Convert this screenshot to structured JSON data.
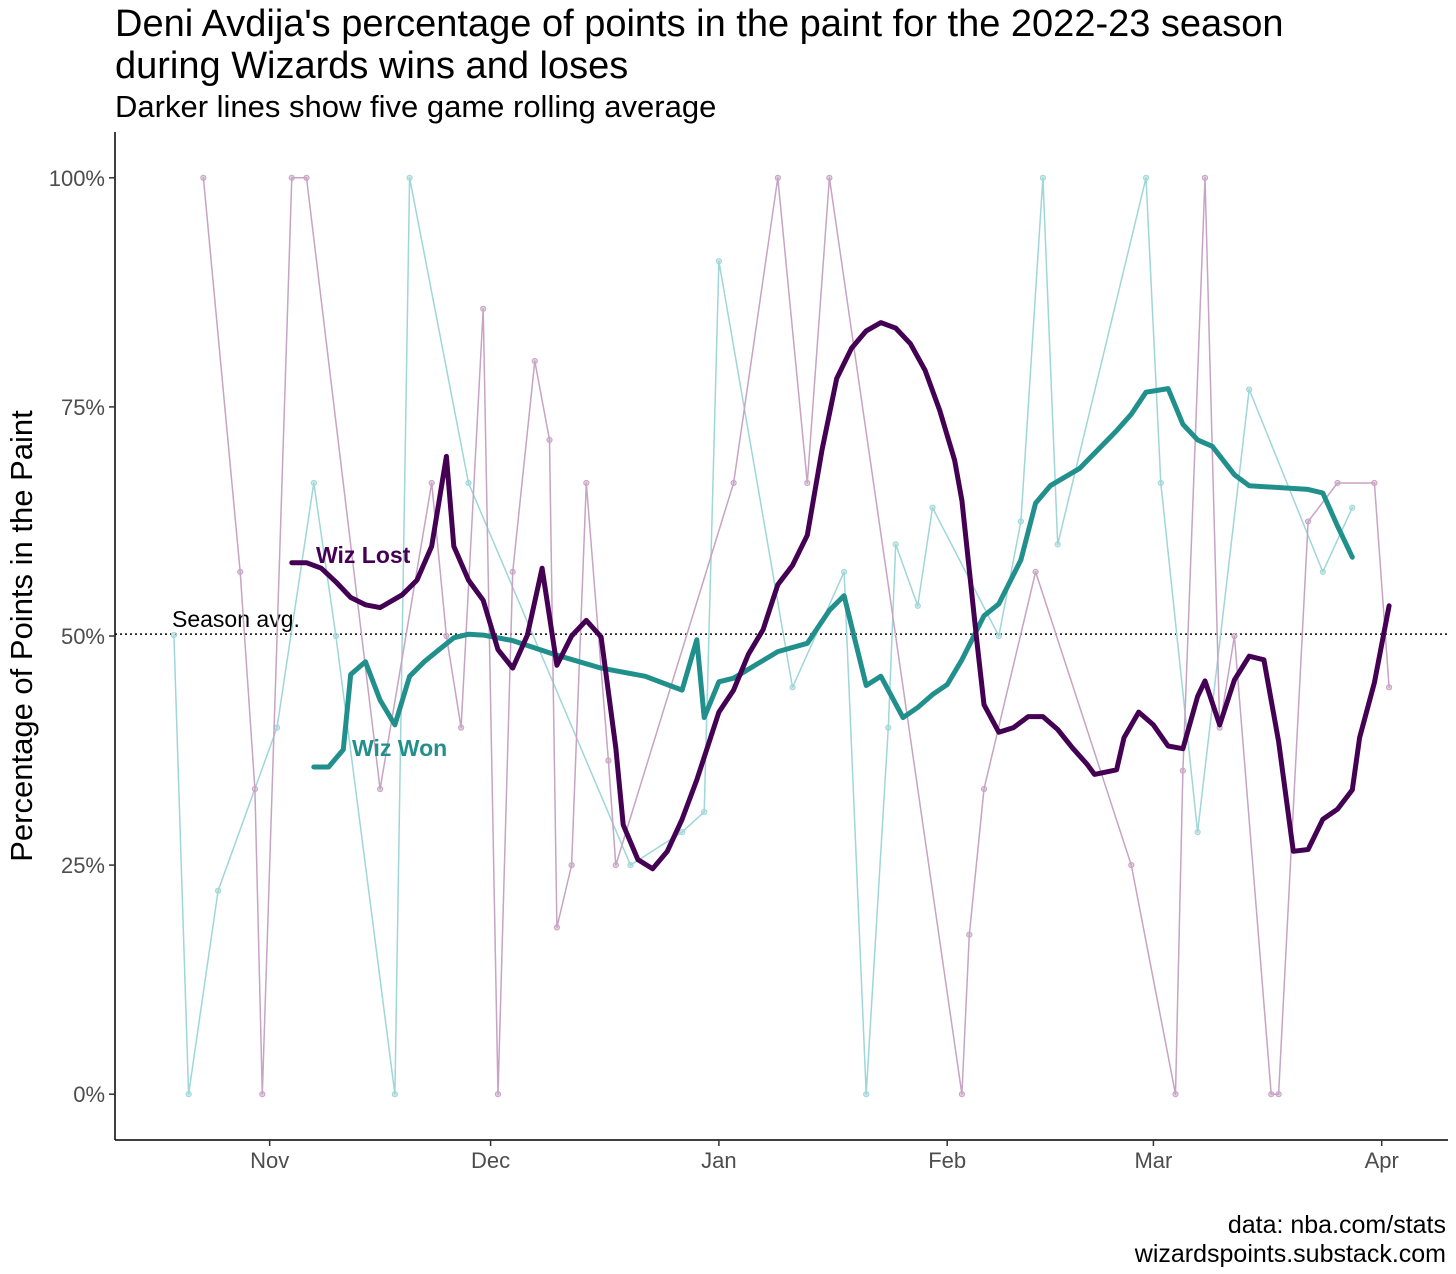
{
  "chart_data": {
    "type": "line",
    "title": [
      "Deni Avdija's percentage of points in the paint for the 2022-23 season",
      "during Wizards wins and loses"
    ],
    "subtitle": "Darker lines show five game rolling average",
    "y_label": "Percentage of Points in the Paint",
    "caption": [
      "data: nba.com/stats",
      "wizardspoints.substack.com"
    ],
    "xlim": [
      -21,
      160
    ],
    "xticks": [
      {
        "value": 0,
        "label": "Nov"
      },
      {
        "value": 30,
        "label": "Dec"
      },
      {
        "value": 61,
        "label": "Jan"
      },
      {
        "value": 92,
        "label": "Feb"
      },
      {
        "value": 120,
        "label": "Mar"
      },
      {
        "value": 151,
        "label": "Apr"
      }
    ],
    "ylim": [
      -5,
      105
    ],
    "yticks": [
      {
        "value": 0,
        "label": "0%"
      },
      {
        "value": 25,
        "label": "25%"
      },
      {
        "value": 50,
        "label": "50%"
      },
      {
        "value": 75,
        "label": "75%"
      },
      {
        "value": 100,
        "label": "100%"
      }
    ],
    "grid": false,
    "reference_line": {
      "label": "Season avg.",
      "value": 50.2
    },
    "series": [
      {
        "color": "#9fd6d8",
        "line_width": 1.5,
        "markers": true,
        "x": [
          -13,
          -11,
          -7,
          1,
          6,
          9,
          17,
          19,
          27,
          49,
          56,
          59,
          61,
          71,
          78,
          81,
          84,
          85,
          88,
          90,
          99,
          102,
          105,
          107,
          119,
          121,
          126,
          133,
          143,
          147
        ],
        "values": [
          50.1,
          0,
          22.2,
          40,
          66.7,
          50,
          0,
          100,
          66.7,
          25,
          28.6,
          30.8,
          90.9,
          44.4,
          57,
          0,
          40,
          60,
          53.3,
          64,
          50,
          62.5,
          100,
          60,
          100,
          66.7,
          28.6,
          76.9,
          57,
          64
        ]
      },
      {
        "color": "#c7a3c4",
        "line_width": 1.5,
        "markers": true,
        "x": [
          -9,
          -4,
          -2,
          -1,
          3,
          5,
          15,
          22,
          24,
          26,
          29,
          31,
          33,
          36,
          38,
          39,
          41,
          43,
          46,
          47,
          63,
          69,
          73,
          76,
          94,
          95,
          97,
          104,
          117,
          123,
          124,
          127,
          129,
          131,
          136,
          137,
          141,
          145,
          150,
          152
        ],
        "values": [
          100,
          57,
          33.3,
          0,
          100,
          100,
          33.3,
          66.7,
          50,
          40,
          85.7,
          0,
          57,
          80,
          71.4,
          18.2,
          25,
          66.7,
          36.4,
          25,
          66.7,
          100,
          66.7,
          100,
          0,
          17.4,
          33.3,
          57,
          25,
          0,
          35.3,
          100,
          40,
          50,
          0,
          0,
          62.5,
          66.7,
          66.7,
          44.4
        ]
      },
      {
        "name": "Wiz Won",
        "color": "#21908c",
        "line_width": 5,
        "markers": false,
        "x": [
          6,
          8,
          10,
          11,
          13,
          15,
          17,
          19,
          21,
          23,
          25,
          27,
          29,
          33,
          39,
          45,
          51,
          54,
          56,
          58,
          59,
          61,
          63,
          69,
          73,
          76,
          78,
          79,
          81,
          83,
          86,
          88,
          90,
          92,
          94,
          97,
          99,
          102,
          104,
          106,
          110,
          115,
          117,
          119,
          122,
          124,
          126,
          128,
          131,
          133,
          141,
          143,
          145,
          147
        ],
        "values": [
          35.7,
          35.7,
          37.6,
          45.8,
          47.2,
          43,
          40.3,
          45.6,
          47.2,
          48.5,
          49.8,
          50.2,
          50.1,
          49.5,
          47.9,
          46.5,
          45.6,
          44.7,
          44.1,
          49.6,
          41.1,
          45,
          45.4,
          48.3,
          49.2,
          52.8,
          54.4,
          51.1,
          44.6,
          45.6,
          41.1,
          42.2,
          43.6,
          44.7,
          47.4,
          52.2,
          53.5,
          58.3,
          64.5,
          66.4,
          68.3,
          72.4,
          74.2,
          76.6,
          77,
          73.1,
          71.4,
          70.7,
          67.6,
          66.4,
          66,
          65.6,
          62,
          58.6
        ]
      },
      {
        "name": "Wiz Lost",
        "color": "#440154",
        "line_width": 5,
        "markers": false,
        "x": [
          3,
          5,
          7,
          9,
          11,
          13,
          15,
          18,
          20,
          22,
          24,
          25,
          27,
          29,
          31,
          33,
          35,
          37,
          39,
          41,
          43,
          45,
          47,
          48,
          50,
          52,
          54,
          56,
          58,
          61,
          63,
          65,
          67,
          69,
          71,
          73,
          75,
          77,
          79,
          81,
          83,
          85,
          87,
          89,
          91,
          93,
          94,
          96,
          97,
          99,
          101,
          103,
          105,
          107,
          109,
          111,
          112,
          115,
          116,
          118,
          120,
          122,
          124,
          126,
          127,
          129,
          131,
          133,
          135,
          137,
          139,
          141,
          143,
          145,
          147,
          148,
          150,
          152
        ],
        "values": [
          58,
          58,
          57.4,
          55.9,
          54.2,
          53.4,
          53.1,
          54.5,
          56.1,
          59.8,
          69.6,
          59.8,
          56.1,
          53.9,
          48.5,
          46.5,
          50.1,
          57.4,
          46.8,
          50,
          51.7,
          49.9,
          37.8,
          29.4,
          25.6,
          24.6,
          26.5,
          30,
          34.3,
          41.7,
          44.1,
          48,
          50.7,
          55.6,
          57.7,
          61,
          70.3,
          78.1,
          81.4,
          83.3,
          84.2,
          83.6,
          81.9,
          79,
          74.6,
          69.2,
          64.8,
          49.6,
          42.5,
          39.5,
          40,
          41.2,
          41.2,
          39.8,
          37.8,
          36,
          34.9,
          35.4,
          38.9,
          41.7,
          40.3,
          38,
          37.7,
          43.4,
          45.1,
          40.3,
          45.2,
          47.8,
          47.4,
          38.5,
          26.5,
          26.7,
          30,
          31.1,
          33.2,
          38.9,
          44.9,
          53.3
        ]
      }
    ]
  }
}
